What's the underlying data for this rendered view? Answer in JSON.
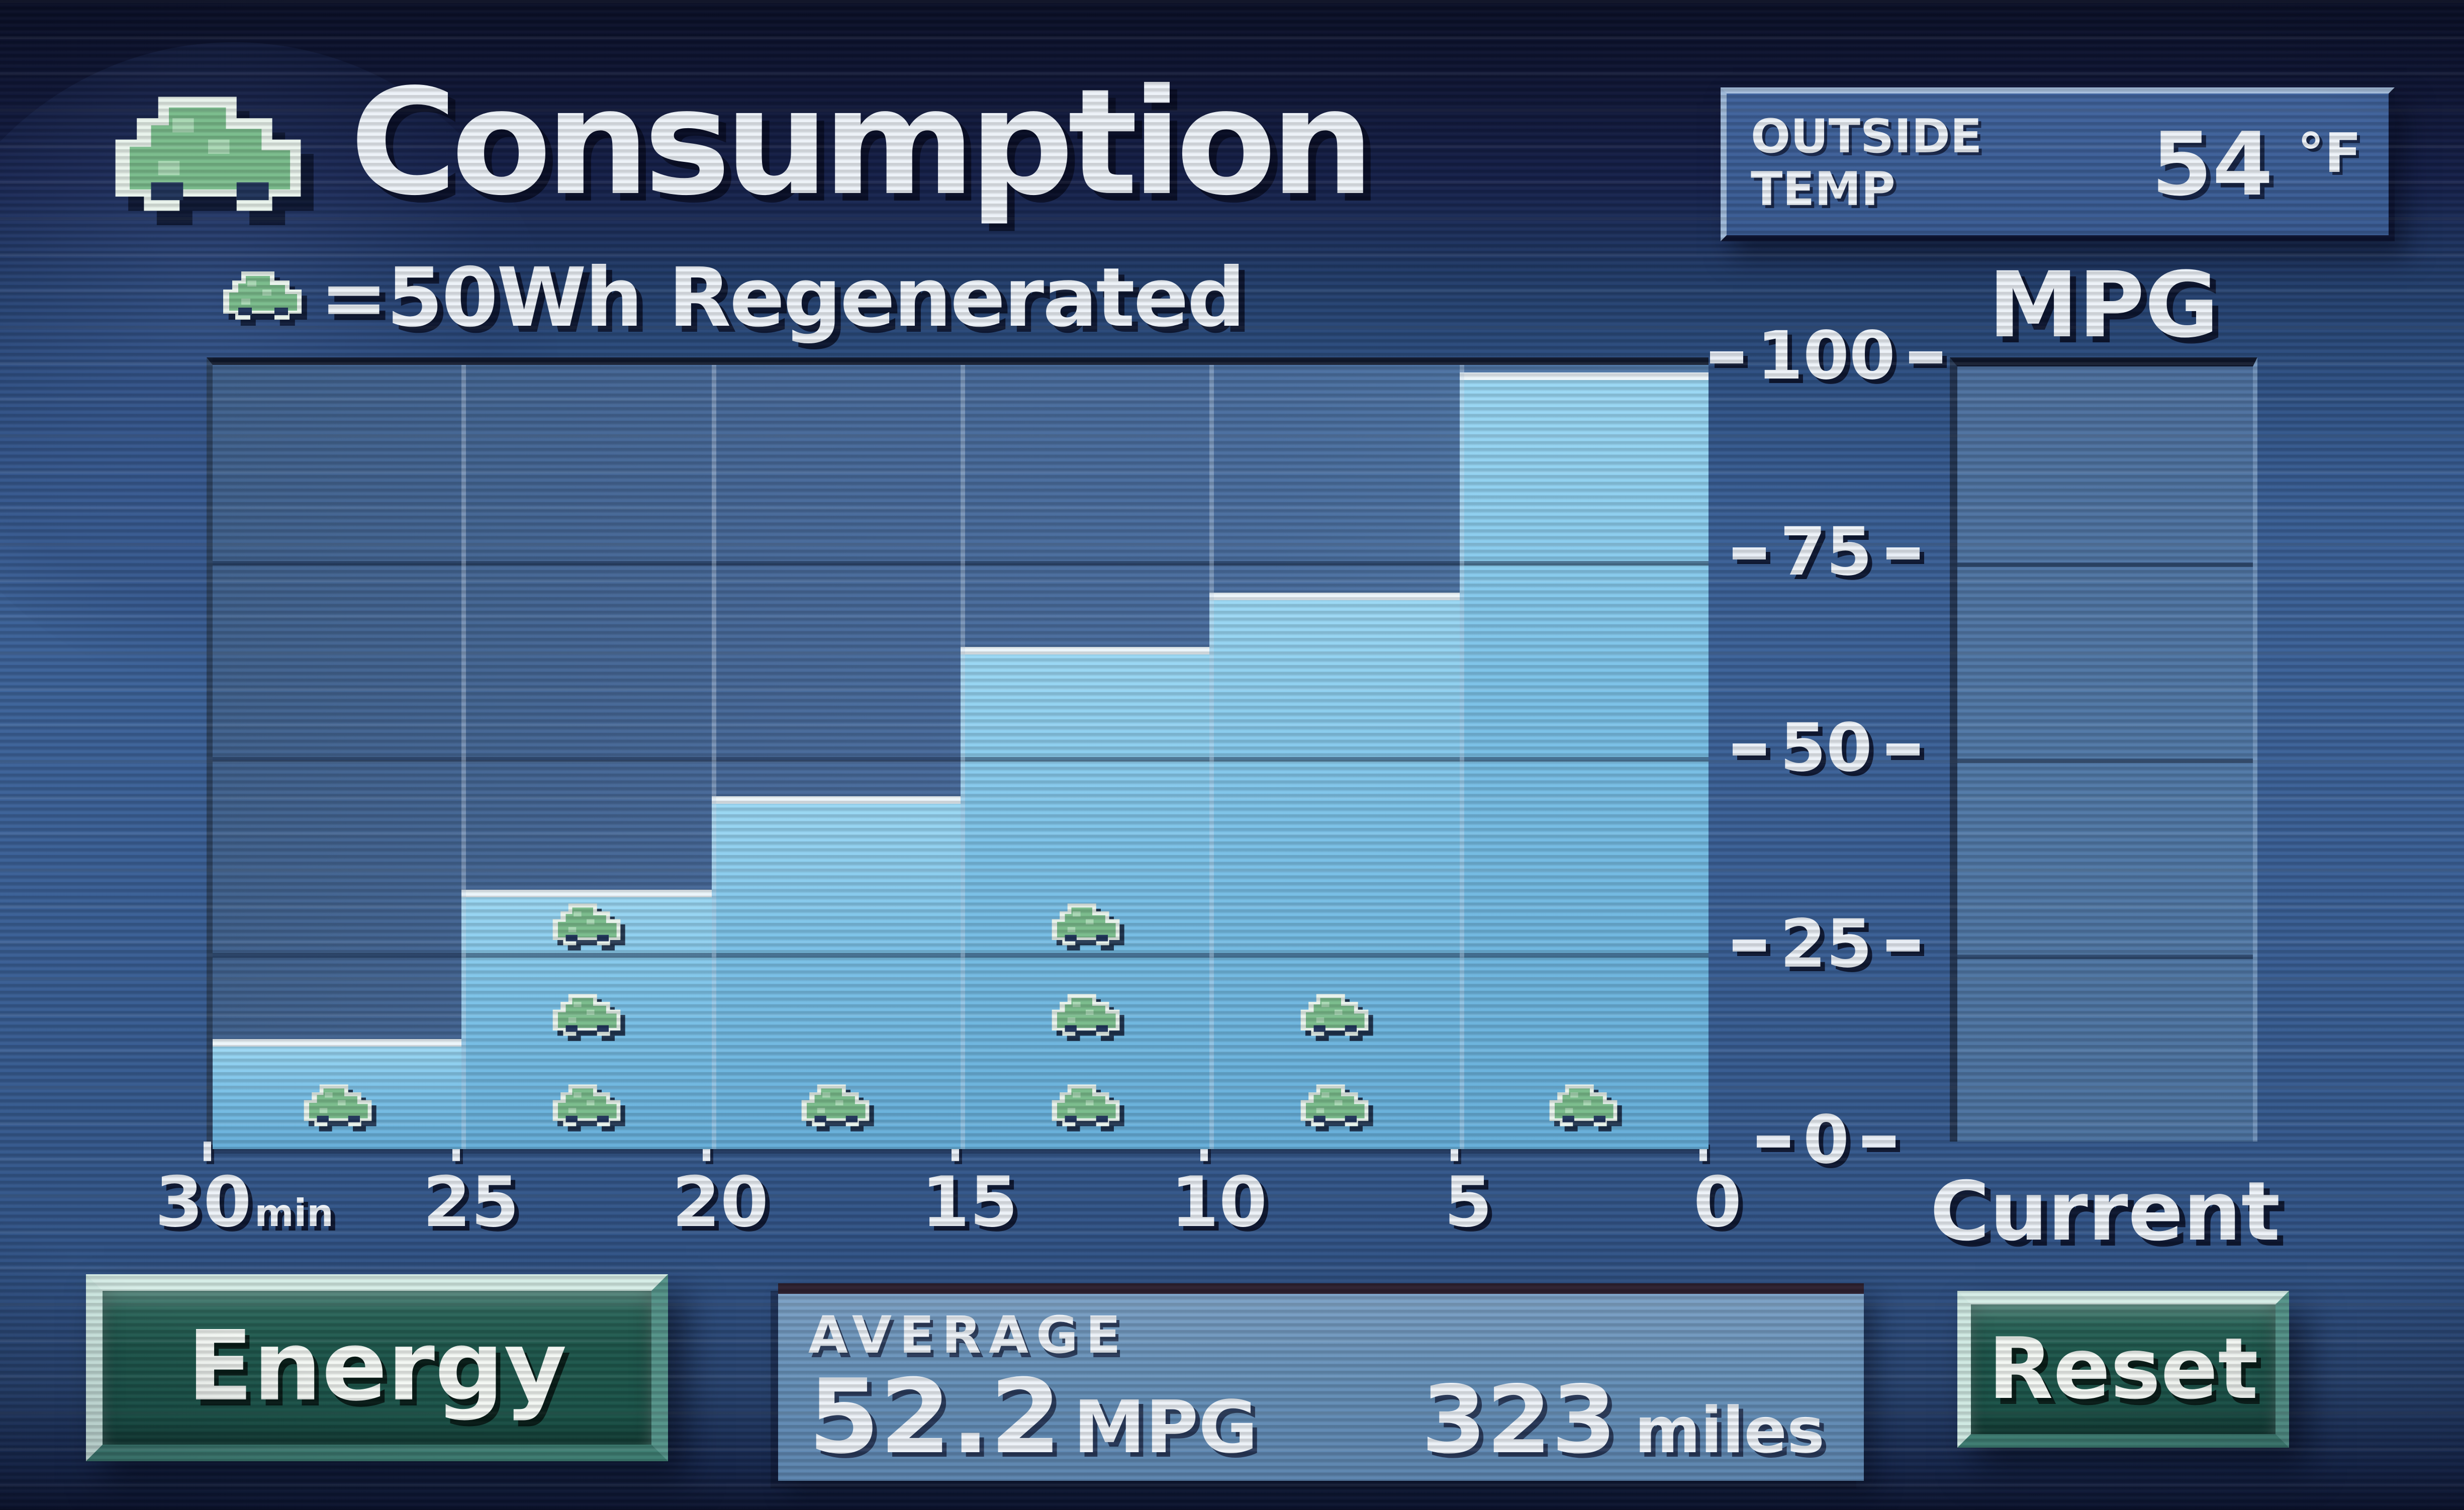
{
  "title": "Consumption",
  "legend": {
    "text": "=50Wh Regenerated"
  },
  "outside_temp": {
    "label_line1": "OUTSIDE",
    "label_line2": "TEMP",
    "value": "54",
    "unit": "°F"
  },
  "axes": {
    "y_ticks": [
      "100",
      "75",
      "50",
      "25",
      "0"
    ],
    "x_ticks": [
      "30",
      "25",
      "20",
      "15",
      "10",
      "5",
      "0"
    ],
    "x_unit": "min"
  },
  "right_panel": {
    "title": "MPG",
    "label": "Current"
  },
  "buttons": {
    "energy": "Energy",
    "reset": "Reset"
  },
  "average": {
    "label": "AVERAGE",
    "mpg_value": "52.2",
    "mpg_unit": "MPG",
    "distance_value": "323",
    "distance_unit": "miles"
  },
  "chart_data": {
    "type": "bar",
    "title": "Consumption",
    "ylabel": "MPG",
    "ylim": [
      0,
      100
    ],
    "categories": [
      "30-25 min ago",
      "25-20 min ago",
      "20-15 min ago",
      "15-10 min ago",
      "10-5 min ago",
      "5-0 min ago"
    ],
    "values": [
      14,
      33,
      45,
      64,
      71,
      99
    ],
    "regen_icons_per_interval": [
      1,
      3,
      1,
      3,
      2,
      1
    ],
    "regen_icon_unit_wh": 50,
    "legend_note": "each car icon = 50Wh regenerated",
    "current_bar_value": null,
    "grid": "on",
    "average_mpg": 52.2,
    "distance_miles": 323,
    "outside_temp_f": 54
  },
  "colors": {
    "screen_blue": "#3a5f95",
    "plot_background": "#4a6d9e",
    "bar_fill": "#7cc2e8",
    "bar_top_edge": "#ecf5fa",
    "button_green": "#1d564b",
    "button_bevel": "#d6ede7",
    "car_icon_green": "#7abc8c",
    "temp_panel_blue": "#3b5e98",
    "average_panel_blue": "#6690b8",
    "text": "#edf2f8"
  }
}
